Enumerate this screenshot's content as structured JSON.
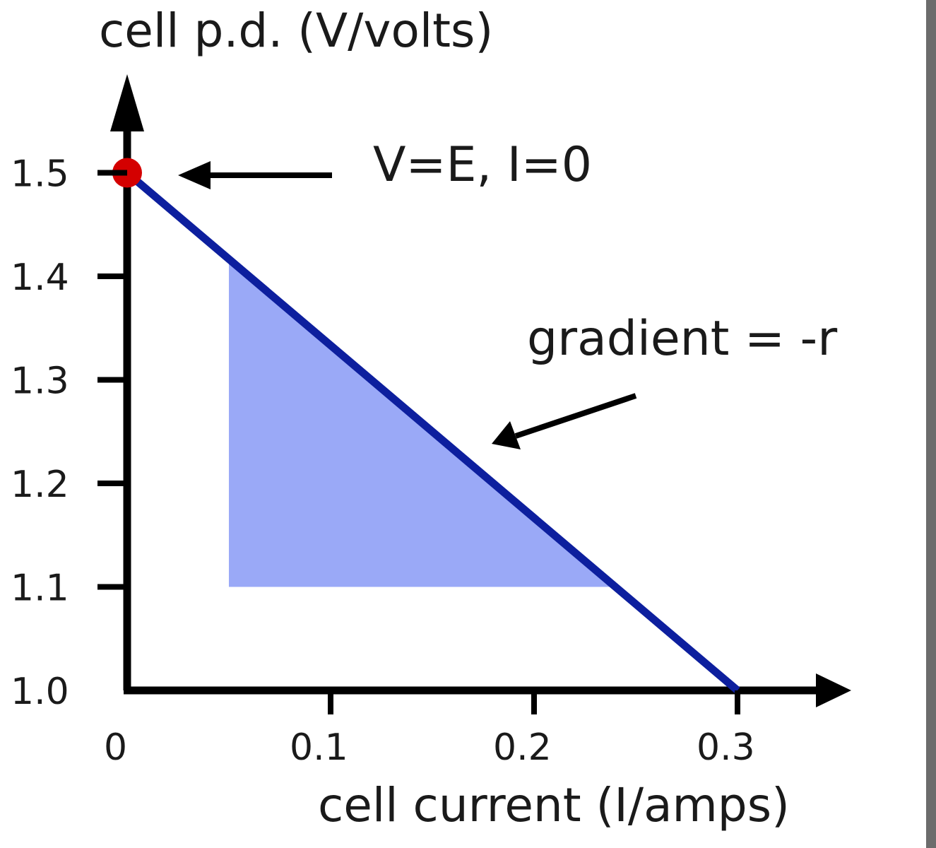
{
  "chart_data": {
    "type": "line",
    "title": "",
    "xlabel": "cell current (I/amps)",
    "ylabel": "cell p.d. (V/volts)",
    "xlim": [
      0,
      0.35
    ],
    "ylim": [
      1.0,
      1.5
    ],
    "x_ticks": [
      0,
      0.1,
      0.2,
      0.3
    ],
    "x_tick_labels": [
      "0",
      "0.1",
      "0.2",
      "0.3"
    ],
    "y_ticks": [
      1.0,
      1.1,
      1.2,
      1.3,
      1.4,
      1.5
    ],
    "y_tick_labels": [
      "1.0",
      "1.1",
      "1.2",
      "1.3",
      "1.4",
      "1.5"
    ],
    "grid": false,
    "series": [
      {
        "x": [
          0,
          0.3
        ],
        "values": [
          1.5,
          1.0
        ],
        "color": "#0d1f9e"
      }
    ],
    "highlight_point": {
      "x": 0,
      "y": 1.5,
      "color": "#d40000"
    },
    "shaded_triangle": {
      "x_start": 0.05,
      "x_end": 0.24,
      "y_bottom": 1.1,
      "color": "#9aa9f7"
    },
    "annotations": [
      {
        "text": "V=E, I=0",
        "target_x": 0,
        "target_y": 1.5
      },
      {
        "text": "gradient = -r",
        "target_x": 0.18,
        "target_y": 1.22
      }
    ]
  }
}
